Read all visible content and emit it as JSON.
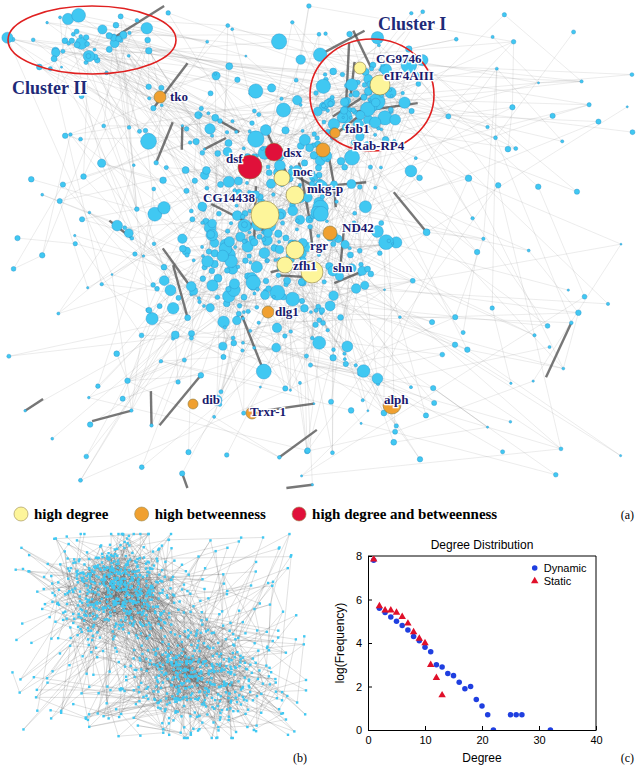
{
  "panel_a": {
    "letter": "(a)",
    "clusters": [
      "Cluster I",
      "Cluster II"
    ],
    "legend": [
      {
        "label": "high degree",
        "color": "#fdf59a"
      },
      {
        "label": "high betweenness",
        "color": "#f0a030"
      },
      {
        "label": "high degree and betweenness",
        "color": "#e0103a"
      }
    ],
    "nodes": [
      {
        "label": "CG9746",
        "group": "high degree"
      },
      {
        "label": "eIF4AIII",
        "group": "high degree"
      },
      {
        "label": "tko",
        "group": "high betweenness"
      },
      {
        "label": "fab1",
        "group": "high betweenness"
      },
      {
        "label": "Rab-RP4",
        "group": "high betweenness"
      },
      {
        "label": "dsf",
        "group": "high degree and betweenness"
      },
      {
        "label": "dsx",
        "group": "high degree and betweenness"
      },
      {
        "label": "noc",
        "group": "high degree"
      },
      {
        "label": "CG14438",
        "group": "high degree"
      },
      {
        "label": "mkg-p",
        "group": "high degree"
      },
      {
        "label": "ND42",
        "group": "high betweenness"
      },
      {
        "label": "rgr",
        "group": "high degree"
      },
      {
        "label": "zfh1",
        "group": "high degree"
      },
      {
        "label": "shn",
        "group": "high degree"
      },
      {
        "label": "dlg1",
        "group": "high betweenness"
      },
      {
        "label": "dib",
        "group": "high betweenness"
      },
      {
        "label": "Trxr-1",
        "group": "high betweenness"
      },
      {
        "label": "alph",
        "group": "high betweenness"
      }
    ]
  },
  "panel_b": {
    "letter": "(b)"
  },
  "chart_data": {
    "type": "scatter",
    "title": "Degree Distribution",
    "letter": "(c)",
    "x_label": "Degree",
    "y_label": "log(Frequency)",
    "xlim": [
      0,
      40
    ],
    "ylim": [
      0,
      8
    ],
    "xticks": [
      0,
      10,
      20,
      30,
      40
    ],
    "yticks": [
      0,
      2,
      4,
      6,
      8
    ],
    "grid": false,
    "legend": "upper right",
    "series": [
      {
        "name": "Dynamic",
        "color": "#1f3fe0",
        "marker": "circle",
        "x": [
          1,
          2,
          3,
          4,
          5,
          6,
          7,
          8,
          9,
          10,
          11,
          12,
          13,
          14,
          15,
          16,
          17,
          18,
          19,
          20,
          21,
          22,
          25,
          26,
          27,
          32
        ],
        "values": [
          7.8,
          5.6,
          5.4,
          5.2,
          5.0,
          4.8,
          4.6,
          4.3,
          4.1,
          3.8,
          3.6,
          3.0,
          2.9,
          2.6,
          2.5,
          2.2,
          1.9,
          2.0,
          1.4,
          1.1,
          0.7,
          0,
          0.7,
          0.7,
          0.7,
          0
        ]
      },
      {
        "name": "Static",
        "color": "#e0102a",
        "marker": "triangle",
        "x": [
          1,
          2,
          3,
          4,
          5,
          6,
          7,
          8,
          9,
          10,
          11,
          12,
          13
        ],
        "values": [
          7.85,
          5.7,
          5.5,
          5.5,
          5.4,
          5.2,
          4.9,
          4.5,
          4.2,
          4.0,
          3.0,
          2.4,
          1.6
        ]
      }
    ]
  }
}
